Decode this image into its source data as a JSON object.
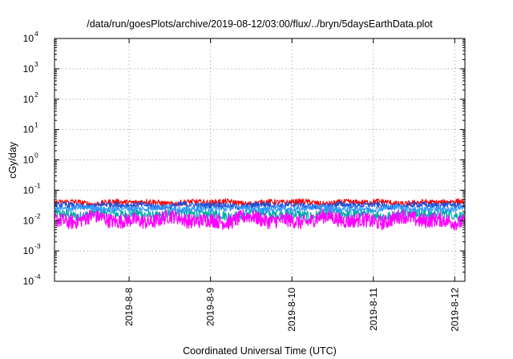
{
  "chart_data": {
    "type": "line",
    "title": "/data/run/goesPlots/archive/2019-08-12/03:00/flux/../bryn/5daysEarthData.plot",
    "xlabel": "Coordinated Universal Time (UTC)",
    "ylabel": "cGy/day",
    "yscale": "log",
    "ylim": [
      0.0001,
      10000
    ],
    "xlim": [
      "2019-08-07T02:00",
      "2019-08-12T03:00"
    ],
    "grid": true,
    "yticks": [
      {
        "base": "10",
        "exp": "-4"
      },
      {
        "base": "10",
        "exp": "-3"
      },
      {
        "base": "10",
        "exp": "-2"
      },
      {
        "base": "10",
        "exp": "-1"
      },
      {
        "base": "10",
        "exp": "0"
      },
      {
        "base": "10",
        "exp": "1"
      },
      {
        "base": "10",
        "exp": "2"
      },
      {
        "base": "10",
        "exp": "3"
      },
      {
        "base": "10",
        "exp": "4"
      }
    ],
    "xticks": [
      {
        "label": "2019-8-8",
        "time": "2019-08-08T00:00"
      },
      {
        "label": "2019-8-9",
        "time": "2019-08-09T00:00"
      },
      {
        "label": "2019-8-10",
        "time": "2019-08-10T00:00"
      },
      {
        "label": "2019-8-11",
        "time": "2019-08-11T00:00"
      },
      {
        "label": "2019-8-12",
        "time": "2019-08-12T00:00"
      }
    ],
    "series": [
      {
        "color": "#ff0000",
        "typical_low": 0.028,
        "typical_high": 0.055
      },
      {
        "color": "#1f4fd8",
        "typical_low": 0.022,
        "typical_high": 0.045
      },
      {
        "color": "#00aaaa",
        "typical_low": 0.009,
        "typical_high": 0.03
      },
      {
        "color": "#ff00ff",
        "typical_low": 0.0045,
        "typical_high": 0.025
      },
      {
        "color": "#3399ff",
        "typical_low": 0.018,
        "typical_high": 0.035
      }
    ]
  }
}
